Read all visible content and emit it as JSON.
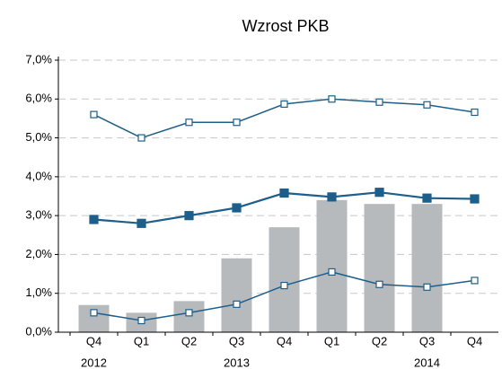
{
  "chart_data": {
    "type": "bar-line",
    "title": "Wzrost PKB",
    "categories": [
      "Q4",
      "Q1",
      "Q2",
      "Q3",
      "Q4",
      "Q1",
      "Q2",
      "Q3",
      "Q4"
    ],
    "category_groups": [
      "2012",
      null,
      null,
      "2013",
      null,
      null,
      null,
      "2014",
      null
    ],
    "bars": {
      "color": "#b7babd",
      "values": [
        0.7,
        0.5,
        0.8,
        1.9,
        2.7,
        3.4,
        3.3,
        3.3,
        null
      ]
    },
    "series": [
      {
        "color": "#1d5f8a",
        "marker": "open",
        "values": [
          5.6,
          5.0,
          5.4,
          5.4,
          5.87,
          6.0,
          5.92,
          5.85,
          5.66
        ]
      },
      {
        "color": "#1d5f8a",
        "marker": "filled",
        "values": [
          2.9,
          2.8,
          3.0,
          3.2,
          3.58,
          3.48,
          3.6,
          3.45,
          3.43
        ]
      },
      {
        "color": "#1d5f8a",
        "marker": "open",
        "values": [
          0.5,
          0.3,
          0.5,
          0.72,
          1.2,
          1.55,
          1.23,
          1.16,
          1.33
        ]
      }
    ],
    "ylim": [
      0,
      7
    ],
    "yticks": [
      {
        "value": 0,
        "label": "0,0%"
      },
      {
        "value": 1,
        "label": "1,0%"
      },
      {
        "value": 2,
        "label": "2,0%"
      },
      {
        "value": 3,
        "label": "3,0%"
      },
      {
        "value": 4,
        "label": "4,0%"
      },
      {
        "value": 5,
        "label": "5,0%"
      },
      {
        "value": 6,
        "label": "6,0%"
      },
      {
        "value": 7,
        "label": "7,0%"
      }
    ],
    "grid": true
  }
}
